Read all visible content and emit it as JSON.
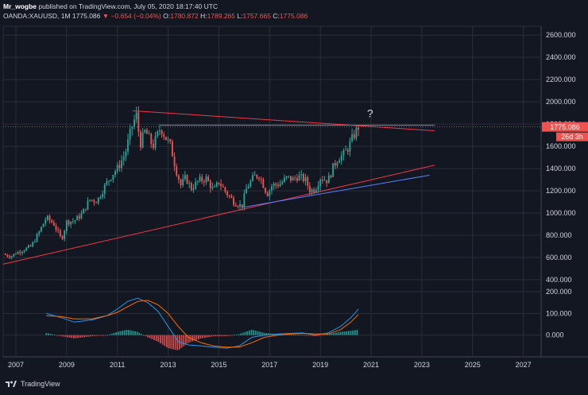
{
  "header": {
    "author": "Mr_wogbe",
    "published": "published on TradingView.com, July 05, 2020 18:17:40 UTC",
    "symbol": "OANDA:XAUUSD, 1M",
    "last": "1775.086",
    "change": "−0.654 (−0.04%)",
    "o_label": "O:",
    "o": "1780.872",
    "h_label": "H:",
    "h": "1789.265",
    "l_label": "L:",
    "l": "1757.665",
    "c_label": "C:",
    "c": "1775.086"
  },
  "price_tag": "1775.086",
  "time_tag": "26d 3h",
  "annotation": "?",
  "footer": {
    "brand": "TradingView"
  },
  "colors": {
    "bg": "#131722",
    "grid": "#2a2e39",
    "up": "#26a69a",
    "down": "#ef5350",
    "red_line": "#f23645",
    "blue_line": "#5b7fff",
    "macd": "#2196f3",
    "signal": "#ff6d00"
  },
  "chart_data": [
    {
      "type": "candlestick",
      "title": "",
      "xlabel": "",
      "ylabel": "",
      "xlim": [
        2006.5,
        2027.7
      ],
      "ylim": [
        300,
        2680
      ],
      "x_ticks": [
        2007,
        2009,
        2011,
        2013,
        2015,
        2017,
        2019,
        2021,
        2023,
        2025,
        2027
      ],
      "y_ticks": [
        400,
        600,
        800,
        1000,
        1200,
        1400,
        1600,
        1800,
        2000,
        2200,
        2400,
        2600
      ],
      "y_tick_labels": [
        "400.000",
        "600.000",
        "800.000",
        "1000.000",
        "1200.000",
        "1400.000",
        "1600.000",
        "1800.000",
        "2000.000",
        "2200.000",
        "2400.000",
        "2600.000"
      ],
      "grid": true,
      "close_path": [
        [
          2006.5,
          630
        ],
        [
          2006.8,
          610
        ],
        [
          2007.0,
          640
        ],
        [
          2007.3,
          670
        ],
        [
          2007.6,
          700
        ],
        [
          2007.9,
          820
        ],
        [
          2008.2,
          960
        ],
        [
          2008.5,
          900
        ],
        [
          2008.8,
          760
        ],
        [
          2009.0,
          920
        ],
        [
          2009.3,
          930
        ],
        [
          2009.6,
          990
        ],
        [
          2009.9,
          1120
        ],
        [
          2010.2,
          1110
        ],
        [
          2010.5,
          1240
        ],
        [
          2010.8,
          1350
        ],
        [
          2011.0,
          1400
        ],
        [
          2011.3,
          1530
        ],
        [
          2011.6,
          1800
        ],
        [
          2011.75,
          1880
        ],
        [
          2011.9,
          1620
        ],
        [
          2012.1,
          1740
        ],
        [
          2012.4,
          1600
        ],
        [
          2012.7,
          1770
        ],
        [
          2012.9,
          1680
        ],
        [
          2013.1,
          1600
        ],
        [
          2013.3,
          1400
        ],
        [
          2013.5,
          1250
        ],
        [
          2013.7,
          1320
        ],
        [
          2013.9,
          1220
        ],
        [
          2014.2,
          1290
        ],
        [
          2014.5,
          1310
        ],
        [
          2014.8,
          1200
        ],
        [
          2015.0,
          1280
        ],
        [
          2015.3,
          1180
        ],
        [
          2015.6,
          1100
        ],
        [
          2015.9,
          1060
        ],
        [
          2016.1,
          1230
        ],
        [
          2016.4,
          1330
        ],
        [
          2016.6,
          1340
        ],
        [
          2016.9,
          1170
        ],
        [
          2017.1,
          1250
        ],
        [
          2017.4,
          1260
        ],
        [
          2017.7,
          1320
        ],
        [
          2017.9,
          1300
        ],
        [
          2018.1,
          1330
        ],
        [
          2018.4,
          1300
        ],
        [
          2018.6,
          1200
        ],
        [
          2018.8,
          1220
        ],
        [
          2019.0,
          1320
        ],
        [
          2019.3,
          1290
        ],
        [
          2019.5,
          1410
        ],
        [
          2019.7,
          1500
        ],
        [
          2019.9,
          1520
        ],
        [
          2020.1,
          1590
        ],
        [
          2020.3,
          1690
        ],
        [
          2020.5,
          1775
        ]
      ],
      "trend_lines": [
        {
          "color": "red",
          "points": [
            [
              2006.5,
              540
            ],
            [
              2023.5,
              1430
            ]
          ]
        },
        {
          "color": "red",
          "points": [
            [
              2011.6,
              1920
            ],
            [
              2023.5,
              1740
            ]
          ]
        },
        {
          "color": "blue",
          "points": [
            [
              2012.7,
              1790
            ],
            [
              2023.5,
              1790
            ]
          ]
        },
        {
          "color": "blue",
          "points": [
            [
              2015.9,
              1050
            ],
            [
              2023.3,
              1340
            ]
          ]
        }
      ]
    },
    {
      "type": "macd",
      "title": "",
      "ylim": [
        -100,
        200
      ],
      "y_ticks": [
        0,
        100,
        200
      ],
      "y_tick_labels": [
        "0.000",
        "100.000",
        "200.000"
      ],
      "macd_path": [
        [
          2008.2,
          100
        ],
        [
          2008.8,
          80
        ],
        [
          2009.3,
          60
        ],
        [
          2010.0,
          70
        ],
        [
          2010.6,
          90
        ],
        [
          2011.0,
          120
        ],
        [
          2011.4,
          155
        ],
        [
          2011.8,
          170
        ],
        [
          2012.2,
          150
        ],
        [
          2012.6,
          110
        ],
        [
          2013.0,
          40
        ],
        [
          2013.4,
          -30
        ],
        [
          2013.8,
          -45
        ],
        [
          2014.3,
          -50
        ],
        [
          2014.8,
          -55
        ],
        [
          2015.3,
          -60
        ],
        [
          2015.8,
          -50
        ],
        [
          2016.3,
          -10
        ],
        [
          2016.8,
          0
        ],
        [
          2017.3,
          5
        ],
        [
          2017.8,
          8
        ],
        [
          2018.3,
          10
        ],
        [
          2018.8,
          0
        ],
        [
          2019.3,
          10
        ],
        [
          2019.8,
          40
        ],
        [
          2020.2,
          80
        ],
        [
          2020.5,
          120
        ]
      ],
      "signal_path": [
        [
          2008.2,
          90
        ],
        [
          2008.8,
          85
        ],
        [
          2009.3,
          75
        ],
        [
          2010.0,
          75
        ],
        [
          2010.6,
          90
        ],
        [
          2011.0,
          105
        ],
        [
          2011.4,
          130
        ],
        [
          2011.8,
          155
        ],
        [
          2012.2,
          160
        ],
        [
          2012.6,
          140
        ],
        [
          2013.0,
          100
        ],
        [
          2013.4,
          40
        ],
        [
          2013.8,
          -10
        ],
        [
          2014.3,
          -35
        ],
        [
          2014.8,
          -50
        ],
        [
          2015.3,
          -55
        ],
        [
          2015.8,
          -55
        ],
        [
          2016.3,
          -35
        ],
        [
          2016.8,
          -10
        ],
        [
          2017.3,
          0
        ],
        [
          2017.8,
          5
        ],
        [
          2018.3,
          8
        ],
        [
          2018.8,
          5
        ],
        [
          2019.3,
          5
        ],
        [
          2019.8,
          25
        ],
        [
          2020.2,
          60
        ],
        [
          2020.5,
          95
        ]
      ]
    }
  ]
}
